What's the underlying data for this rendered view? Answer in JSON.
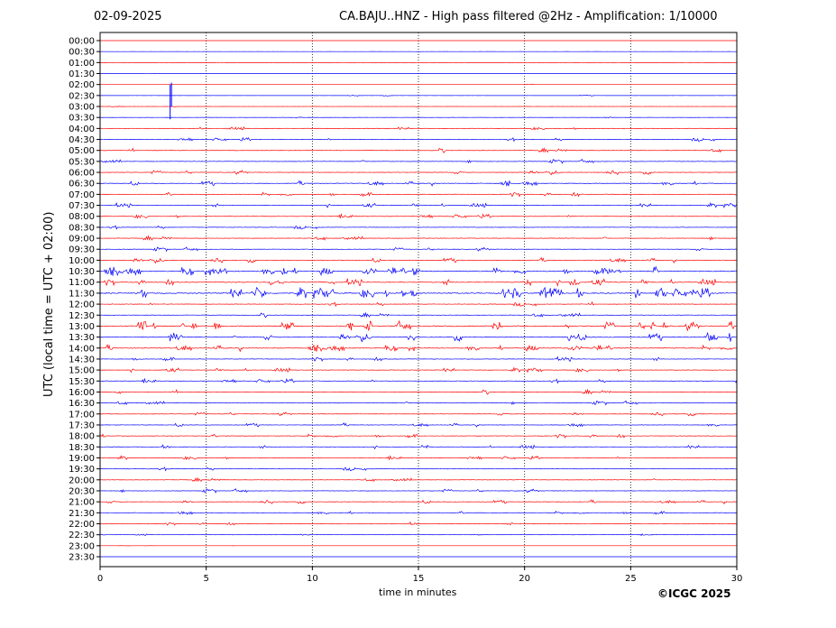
{
  "header": {
    "date": "02-09-2025",
    "title": "CA.BAJU..HNZ - High pass filtered @2Hz - Amplification: 1/10000"
  },
  "footer": {
    "copyright": "©ICGC 2025"
  },
  "chart_data": {
    "type": "line",
    "title": "CA.BAJU..HNZ - High pass filtered @2Hz - Amplification: 1/10000",
    "xlabel": "time in minutes",
    "ylabel": "UTC (local time = UTC + 02:00)",
    "xlim": [
      0,
      30
    ],
    "x_ticks": [
      0,
      5,
      10,
      15,
      20,
      25,
      30
    ],
    "grid": "vertical dotted lines at x ticks",
    "row_labels": [
      "00:00",
      "00:30",
      "01:00",
      "01:30",
      "02:00",
      "02:30",
      "03:00",
      "03:30",
      "04:00",
      "04:30",
      "05:00",
      "05:30",
      "06:00",
      "06:30",
      "07:00",
      "07:30",
      "08:00",
      "08:30",
      "09:00",
      "09:30",
      "10:00",
      "10:30",
      "11:00",
      "11:30",
      "12:00",
      "12:30",
      "13:00",
      "13:30",
      "14:00",
      "14:30",
      "15:00",
      "15:30",
      "16:00",
      "16:30",
      "17:00",
      "17:30",
      "18:00",
      "18:30",
      "19:00",
      "19:30",
      "20:00",
      "20:30",
      "21:00",
      "21:30",
      "22:00",
      "22:30",
      "23:00",
      "23:30"
    ],
    "trace_colors": [
      "#ff0000",
      "#0000ff"
    ],
    "activity_levels": [
      0.05,
      0.05,
      0.05,
      0.1,
      0.05,
      0.2,
      0.2,
      0.3,
      0.6,
      0.7,
      0.8,
      0.7,
      0.8,
      0.9,
      0.9,
      0.8,
      0.8,
      0.7,
      0.8,
      0.7,
      0.9,
      1.6,
      1.3,
      2.0,
      0.8,
      0.8,
      1.8,
      1.5,
      1.2,
      0.8,
      0.8,
      0.8,
      0.8,
      0.7,
      0.7,
      0.7,
      0.8,
      0.7,
      0.7,
      0.7,
      0.7,
      0.7,
      0.7,
      0.7,
      0.6,
      0.3,
      0.05,
      0.05
    ]
  }
}
